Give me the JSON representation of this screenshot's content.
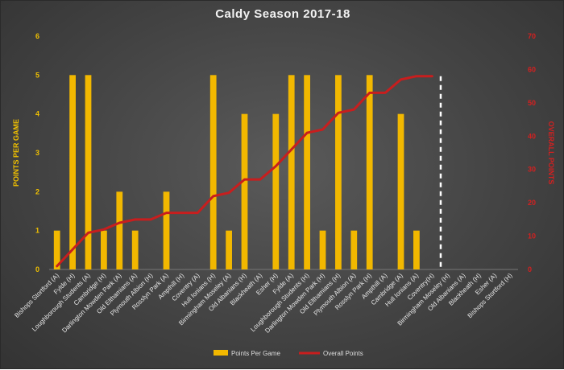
{
  "chart_data": {
    "type": "bar",
    "title": "Caldy Season 2017-18",
    "ylabel": "POINTS PER GAME",
    "y2label": "OVERALL POINTS",
    "ylim": [
      0,
      6
    ],
    "y2lim": [
      0,
      70
    ],
    "yticks": [
      "0",
      "1",
      "2",
      "3",
      "4",
      "5",
      "6"
    ],
    "y2ticks": [
      "0",
      "10",
      "20",
      "30",
      "40",
      "50",
      "60",
      "70"
    ],
    "grid": false,
    "legend_position": "bottom",
    "categories": [
      "Bishops Stortford (A)",
      "Fylde (H)",
      "Loughborough Students (A)",
      "Cambridge (H)",
      "Darlington Mowden Park (A)",
      "Old Elthamians (A)",
      "Plymouth Albion (H)",
      "Rosslyn Park (A)",
      "Ampthill (H)",
      "Coventry (A)",
      "Hull Ionians (H)",
      "Birmingham Moseley (A)",
      "Old Albanians (H)",
      "Blackheath (A)",
      "Esher (H)",
      "Fylde (A)",
      "Loughborough Students (H)",
      "Darlington Mowden Park (H)",
      "Old Elthamians (H)",
      "Plymouth Albion (A)",
      "Rosslyn Park (H)",
      "Ampthill (A)",
      "Cambridge (A)",
      "Hull Ionians (A)",
      "Coventry(H)",
      "Birmingham Moseley (H)",
      "Old Albanians (A)",
      "Blackheath (H)",
      "Esher (A)",
      "Bishops Stortford (H)"
    ],
    "series": [
      {
        "name": "Points Per Game",
        "type": "bar",
        "axis": "left",
        "color": "#f2b800",
        "values": [
          1,
          5,
          5,
          1,
          2,
          1,
          0,
          2,
          0,
          0,
          5,
          1,
          4,
          0,
          4,
          5,
          5,
          1,
          5,
          1,
          5,
          0,
          4,
          1,
          null,
          null,
          null,
          null,
          null,
          null
        ]
      },
      {
        "name": "Overall Points",
        "type": "line",
        "axis": "right",
        "color": "#c81e1e",
        "values": [
          1,
          6,
          11,
          12,
          14,
          15,
          15,
          17,
          17,
          17,
          22,
          23,
          27,
          27,
          31,
          36,
          41,
          42,
          47,
          48,
          53,
          53,
          57,
          58,
          58,
          null,
          null,
          null,
          null,
          null
        ]
      }
    ],
    "divider_after_category": "Coventry(H)"
  }
}
